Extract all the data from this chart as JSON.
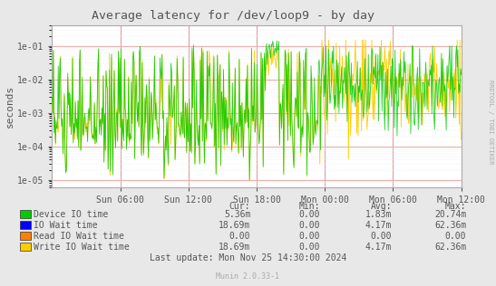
{
  "title": "Average latency for /dev/loop9 - by day",
  "ylabel": "seconds",
  "background_color": "#e8e8e8",
  "plot_bg_color": "#ffffff",
  "grid_color_h": "#e8b0b0",
  "grid_color_v": "#e8b0b0",
  "x_tick_labels": [
    "Sun 06:00",
    "Sun 12:00",
    "Sun 18:00",
    "Mon 00:00",
    "Mon 06:00",
    "Mon 12:00"
  ],
  "y_ticks": [
    1e-05,
    0.0001,
    0.001,
    0.01,
    0.1
  ],
  "y_tick_labels": [
    "1e-05",
    "1e-04",
    "1e-03",
    "1e-02",
    "1e-01"
  ],
  "ylim_min": 6e-06,
  "ylim_max": 0.4,
  "legend": [
    {
      "label": "Device IO time",
      "color": "#00cc00"
    },
    {
      "label": "IO Wait time",
      "color": "#0000ff"
    },
    {
      "label": "Read IO Wait time",
      "color": "#ff7f00"
    },
    {
      "label": "Write IO Wait time",
      "color": "#ffcc00"
    }
  ],
  "stats_headers": [
    "Cur:",
    "Min:",
    "Avg:",
    "Max:"
  ],
  "stats": [
    [
      "5.36m",
      "0.00",
      "1.83m",
      "20.74m"
    ],
    [
      "18.69m",
      "0.00",
      "4.17m",
      "62.36m"
    ],
    [
      "0.00",
      "0.00",
      "0.00",
      "0.00"
    ],
    [
      "18.69m",
      "0.00",
      "4.17m",
      "62.36m"
    ]
  ],
  "last_update": "Last update: Mon Nov 25 14:30:00 2024",
  "munin_version": "Munin 2.0.33-1",
  "rrdtool_label": "RRDTOOL / TOBI OETIKER",
  "font_color": "#555555",
  "axis_color": "#aaaaaa",
  "seed": 42,
  "n_points": 600
}
